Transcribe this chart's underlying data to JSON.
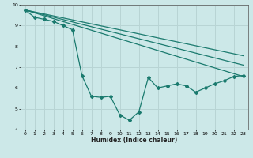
{
  "xlabel": "Humidex (Indice chaleur)",
  "ylabel": "",
  "background_color": "#cce8e8",
  "grid_color": "#b8d4d4",
  "line_color": "#1a7a6e",
  "xlim": [
    -0.5,
    23.5
  ],
  "ylim": [
    4,
    10
  ],
  "xticks": [
    0,
    1,
    2,
    3,
    4,
    5,
    6,
    7,
    8,
    9,
    10,
    11,
    12,
    13,
    14,
    15,
    16,
    17,
    18,
    19,
    20,
    21,
    22,
    23
  ],
  "yticks": [
    4,
    5,
    6,
    7,
    8,
    9,
    10
  ],
  "curve1_x": [
    0,
    1,
    2,
    3,
    4,
    5,
    6,
    7,
    8,
    9,
    10,
    11,
    12,
    13,
    14,
    15,
    16,
    17,
    18,
    19,
    20,
    21,
    22,
    23
  ],
  "curve1_y": [
    9.75,
    9.4,
    9.3,
    9.2,
    9.0,
    8.8,
    6.6,
    5.6,
    5.55,
    5.6,
    4.7,
    4.45,
    4.85,
    6.5,
    6.0,
    6.1,
    6.2,
    6.1,
    5.8,
    6.0,
    6.2,
    6.35,
    6.55,
    6.6
  ],
  "smooth_lines": [
    {
      "x": [
        0,
        23
      ],
      "y": [
        9.75,
        6.55
      ]
    },
    {
      "x": [
        0,
        23
      ],
      "y": [
        9.75,
        7.1
      ]
    },
    {
      "x": [
        0,
        23
      ],
      "y": [
        9.75,
        7.55
      ]
    }
  ]
}
